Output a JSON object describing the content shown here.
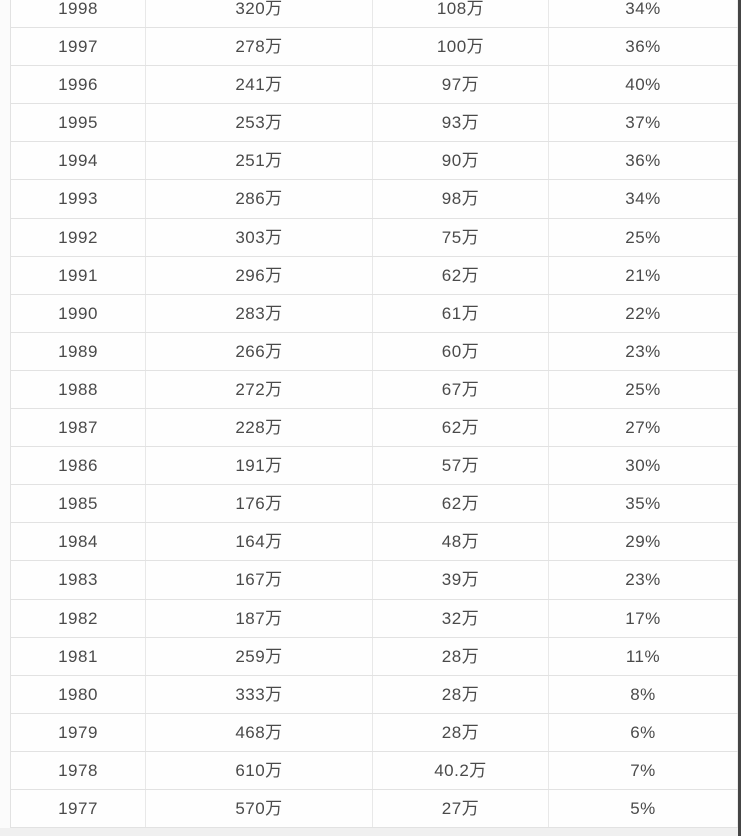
{
  "table": {
    "visible_header": "",
    "note_first_row_clipped": "first row partially cut off at top of screenshot"
  },
  "colors": {
    "cell_background": "#fefefe",
    "grid_line": "#e2e2e2",
    "text": "#4a4a4a",
    "bottom_strip": "#f0f0f0",
    "right_edge": "#454545"
  },
  "chart_data": {
    "type": "table",
    "title": "",
    "columns": [
      "",
      "",
      "",
      ""
    ],
    "layout": "4 columns: year, value (万), value (万), percentage; grid lines on; no visible header row",
    "rows": [
      [
        "1998",
        "320万",
        "108万",
        "34%"
      ],
      [
        "1997",
        "278万",
        "100万",
        "36%"
      ],
      [
        "1996",
        "241万",
        "97万",
        "40%"
      ],
      [
        "1995",
        "253万",
        "93万",
        "37%"
      ],
      [
        "1994",
        "251万",
        "90万",
        "36%"
      ],
      [
        "1993",
        "286万",
        "98万",
        "34%"
      ],
      [
        "1992",
        "303万",
        "75万",
        "25%"
      ],
      [
        "1991",
        "296万",
        "62万",
        "21%"
      ],
      [
        "1990",
        "283万",
        "61万",
        "22%"
      ],
      [
        "1989",
        "266万",
        "60万",
        "23%"
      ],
      [
        "1988",
        "272万",
        "67万",
        "25%"
      ],
      [
        "1987",
        "228万",
        "62万",
        "27%"
      ],
      [
        "1986",
        "191万",
        "57万",
        "30%"
      ],
      [
        "1985",
        "176万",
        "62万",
        "35%"
      ],
      [
        "1984",
        "164万",
        "48万",
        "29%"
      ],
      [
        "1983",
        "167万",
        "39万",
        "23%"
      ],
      [
        "1982",
        "187万",
        "32万",
        "17%"
      ],
      [
        "1981",
        "259万",
        "28万",
        "11%"
      ],
      [
        "1980",
        "333万",
        "28万",
        "8%"
      ],
      [
        "1979",
        "468万",
        "28万",
        "6%"
      ],
      [
        "1978",
        "610万",
        "40.2万",
        "7%"
      ],
      [
        "1977",
        "570万",
        "27万",
        "5%"
      ]
    ]
  }
}
